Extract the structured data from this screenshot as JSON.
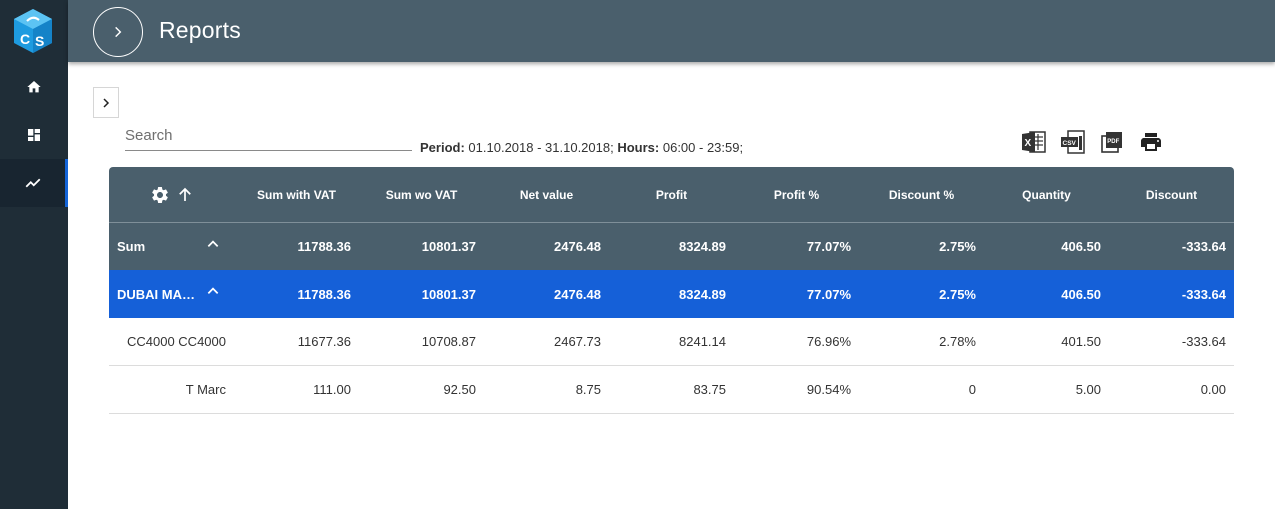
{
  "app": {
    "logo_icon": "cs-cube-logo",
    "accent": "#1560d8",
    "header_bg": "#4a5f6c",
    "sidebar_bg": "#1f2d37"
  },
  "sidebar": {
    "items": [
      {
        "icon": "home-icon",
        "active": false
      },
      {
        "icon": "dashboard-icon",
        "active": false
      },
      {
        "icon": "trending-icon",
        "active": true
      }
    ]
  },
  "header": {
    "title": "Reports",
    "menu_icon": "chevron-right-icon"
  },
  "search": {
    "placeholder": "Search",
    "value": ""
  },
  "period": {
    "period_label": "Period:",
    "period_value": "01.10.2018 - 31.10.2018;",
    "hours_label": "Hours:",
    "hours_value": "06:00 - 23:59;"
  },
  "exports": [
    {
      "icon": "excel-icon"
    },
    {
      "icon": "csv-icon"
    },
    {
      "icon": "pdf-icon"
    },
    {
      "icon": "print-icon"
    }
  ],
  "table": {
    "columns": [
      "Sum with VAT",
      "Sum wo VAT",
      "Net value",
      "Profit",
      "Profit %",
      "Discount %",
      "Quantity",
      "Discount"
    ],
    "sum_row": {
      "name": "Sum",
      "cells": [
        "11788.36",
        "10801.37",
        "2476.48",
        "8324.89",
        "77.07%",
        "2.75%",
        "406.50",
        "-333.64"
      ]
    },
    "group_row": {
      "name": "DUBAI MARINA",
      "cells": [
        "11788.36",
        "10801.37",
        "2476.48",
        "8324.89",
        "77.07%",
        "2.75%",
        "406.50",
        "-333.64"
      ]
    },
    "rows": [
      {
        "name": "CC4000 CC4000",
        "cells": [
          "11677.36",
          "10708.87",
          "2467.73",
          "8241.14",
          "76.96%",
          "2.78%",
          "401.50",
          "-333.64"
        ]
      },
      {
        "name": "T Marc",
        "cells": [
          "111.00",
          "92.50",
          "8.75",
          "83.75",
          "90.54%",
          "0",
          "5.00",
          "0.00"
        ]
      }
    ]
  }
}
